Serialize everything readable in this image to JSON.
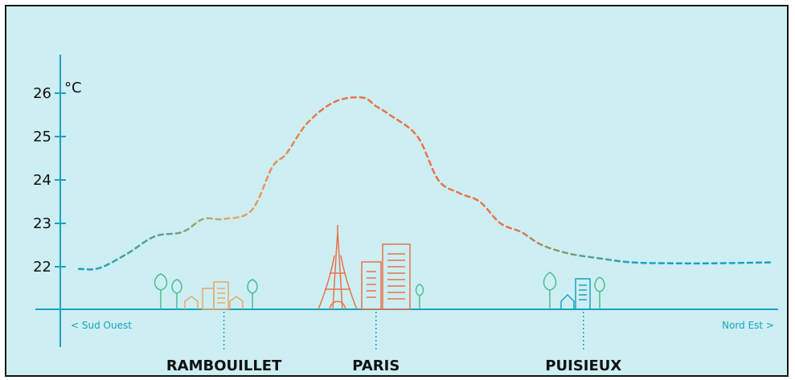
{
  "chart_data": {
    "type": "line",
    "unit": "°C",
    "ylim": [
      21.0,
      27.0
    ],
    "yticks": [
      22,
      23,
      24,
      25,
      26
    ],
    "direction_left": "< Sud Ouest",
    "direction_right": "Nord Est >",
    "cities": [
      {
        "name": "RAMBOUILLET",
        "x": 0.21
      },
      {
        "name": "PARIS",
        "x": 0.43
      },
      {
        "name": "PUISIEUX",
        "x": 0.73
      }
    ],
    "series": [
      {
        "x": [
          0.0,
          0.03,
          0.07,
          0.11,
          0.15,
          0.18,
          0.21,
          0.25,
          0.28,
          0.3,
          0.33,
          0.37,
          0.41,
          0.43,
          0.45,
          0.49,
          0.52,
          0.55,
          0.58,
          0.61,
          0.64,
          0.67,
          0.71,
          0.75,
          0.8,
          0.86,
          0.92,
          1.0
        ],
        "values": [
          21.95,
          21.97,
          22.3,
          22.7,
          22.8,
          23.1,
          23.1,
          23.3,
          24.3,
          24.6,
          25.3,
          25.8,
          25.9,
          25.7,
          25.5,
          25.0,
          24.0,
          23.7,
          23.5,
          23.0,
          22.8,
          22.5,
          22.3,
          22.2,
          22.1,
          22.08,
          22.08,
          22.1
        ]
      }
    ],
    "colors": {
      "cool": "#1aa3bf",
      "mid": "#6aa37a",
      "warm_low": "#e8a86a",
      "warm_high": "#e8744a",
      "axis": "#1aa3bf",
      "background": "#cdeef3",
      "city_orange": "#e8744a",
      "city_teal": "#1aa3bf",
      "tree_green": "#4bbf8f"
    }
  }
}
